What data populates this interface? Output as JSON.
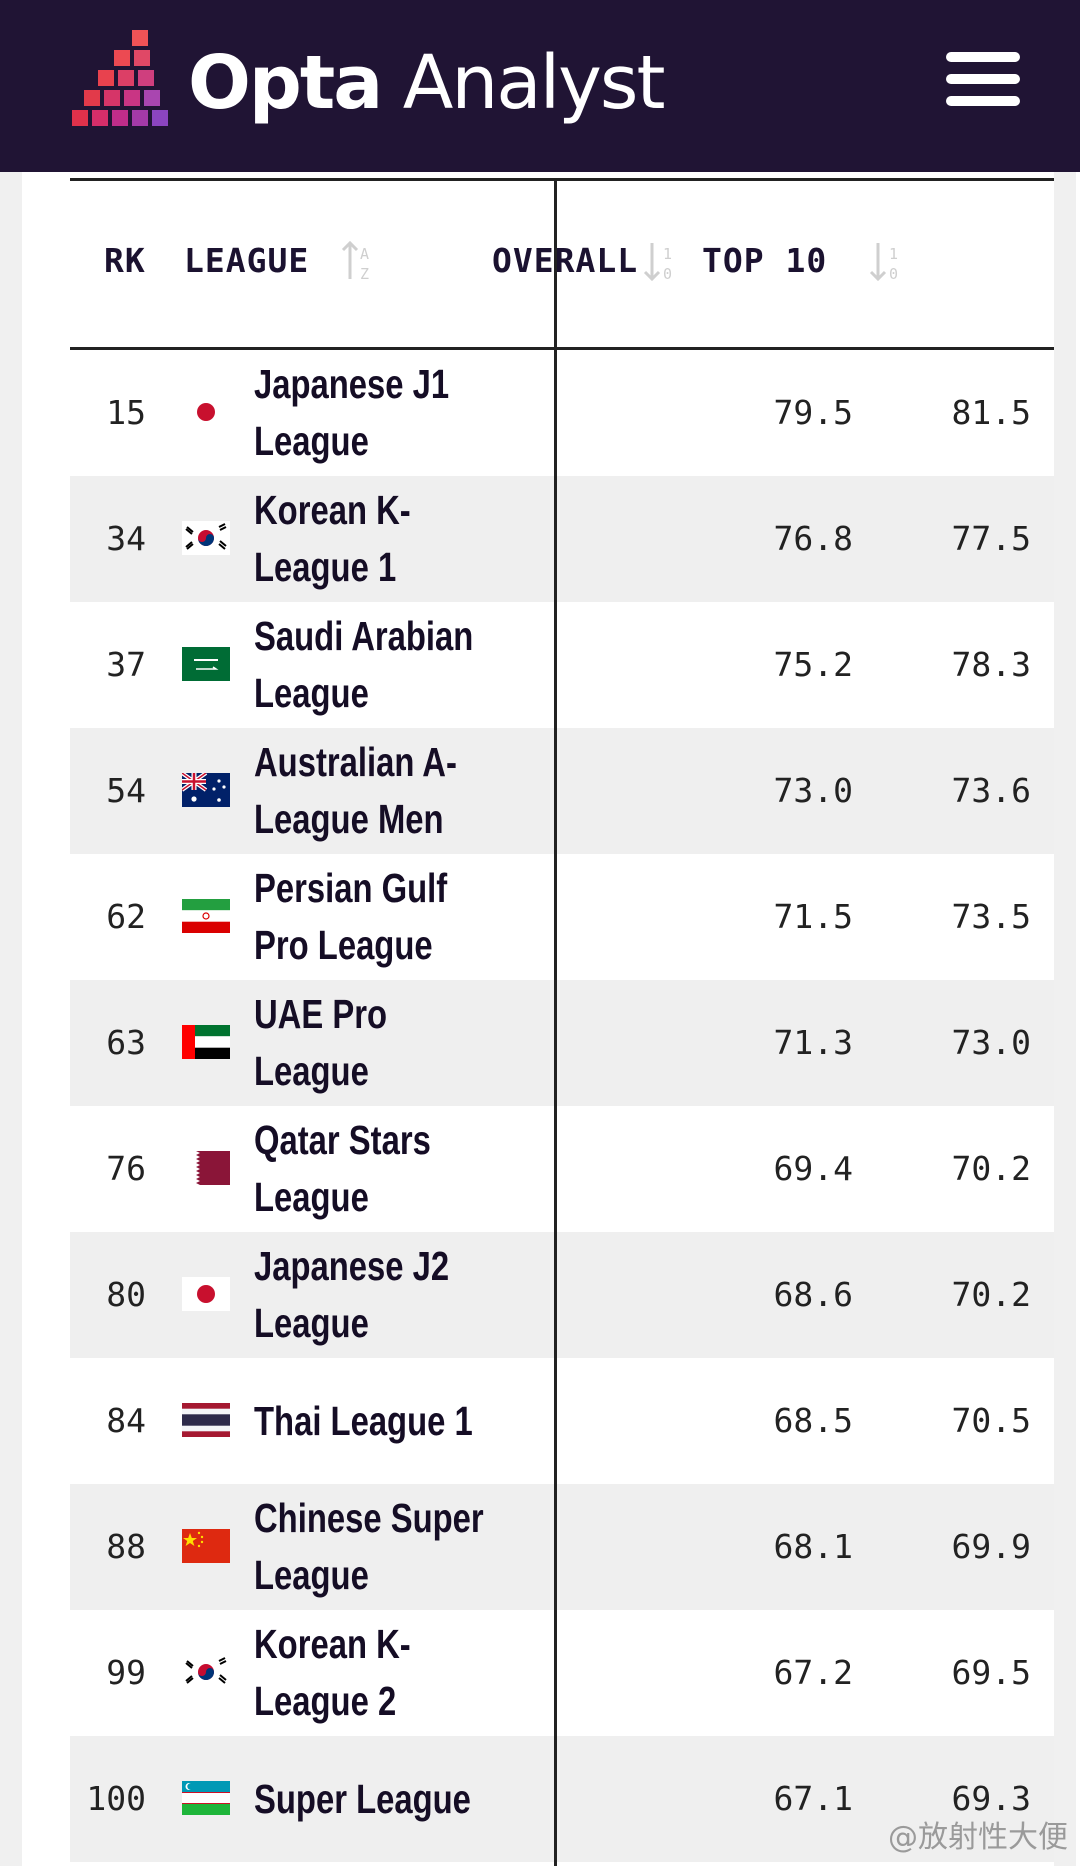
{
  "header": {
    "brand_bold": "Opta",
    "brand_light": " Analyst",
    "background": "#201434"
  },
  "table": {
    "columns": {
      "rank": "RK",
      "league": "LEAGUE",
      "overall": "OVERALL",
      "top10": "TOP 10"
    },
    "rows": [
      {
        "rank": "15",
        "league": "Japanese J1 League",
        "flag": "japan",
        "overall": "79.5",
        "top10": "81.5"
      },
      {
        "rank": "34",
        "league": "Korean K-League 1",
        "flag": "south-korea",
        "overall": "76.8",
        "top10": "77.5"
      },
      {
        "rank": "37",
        "league": "Saudi Arabian League",
        "flag": "saudi-arabia",
        "overall": "75.2",
        "top10": "78.3"
      },
      {
        "rank": "54",
        "league": "Australian A-League Men",
        "flag": "australia",
        "overall": "73.0",
        "top10": "73.6"
      },
      {
        "rank": "62",
        "league": "Persian Gulf Pro League",
        "flag": "iran",
        "overall": "71.5",
        "top10": "73.5"
      },
      {
        "rank": "63",
        "league": "UAE Pro League",
        "flag": "uae",
        "overall": "71.3",
        "top10": "73.0"
      },
      {
        "rank": "76",
        "league": "Qatar Stars League",
        "flag": "qatar",
        "overall": "69.4",
        "top10": "70.2"
      },
      {
        "rank": "80",
        "league": "Japanese J2 League",
        "flag": "japan",
        "overall": "68.6",
        "top10": "70.2"
      },
      {
        "rank": "84",
        "league": "Thai League 1",
        "flag": "thailand",
        "overall": "68.5",
        "top10": "70.5"
      },
      {
        "rank": "88",
        "league": "Chinese Super League",
        "flag": "china",
        "overall": "68.1",
        "top10": "69.9"
      },
      {
        "rank": "99",
        "league": "Korean K-League 2",
        "flag": "south-korea",
        "overall": "67.2",
        "top10": "69.5"
      },
      {
        "rank": "100",
        "league": "Super League",
        "flag": "uzbekistan",
        "overall": "67.1",
        "top10": "69.3"
      }
    ]
  },
  "watermark": "@放射性大便"
}
